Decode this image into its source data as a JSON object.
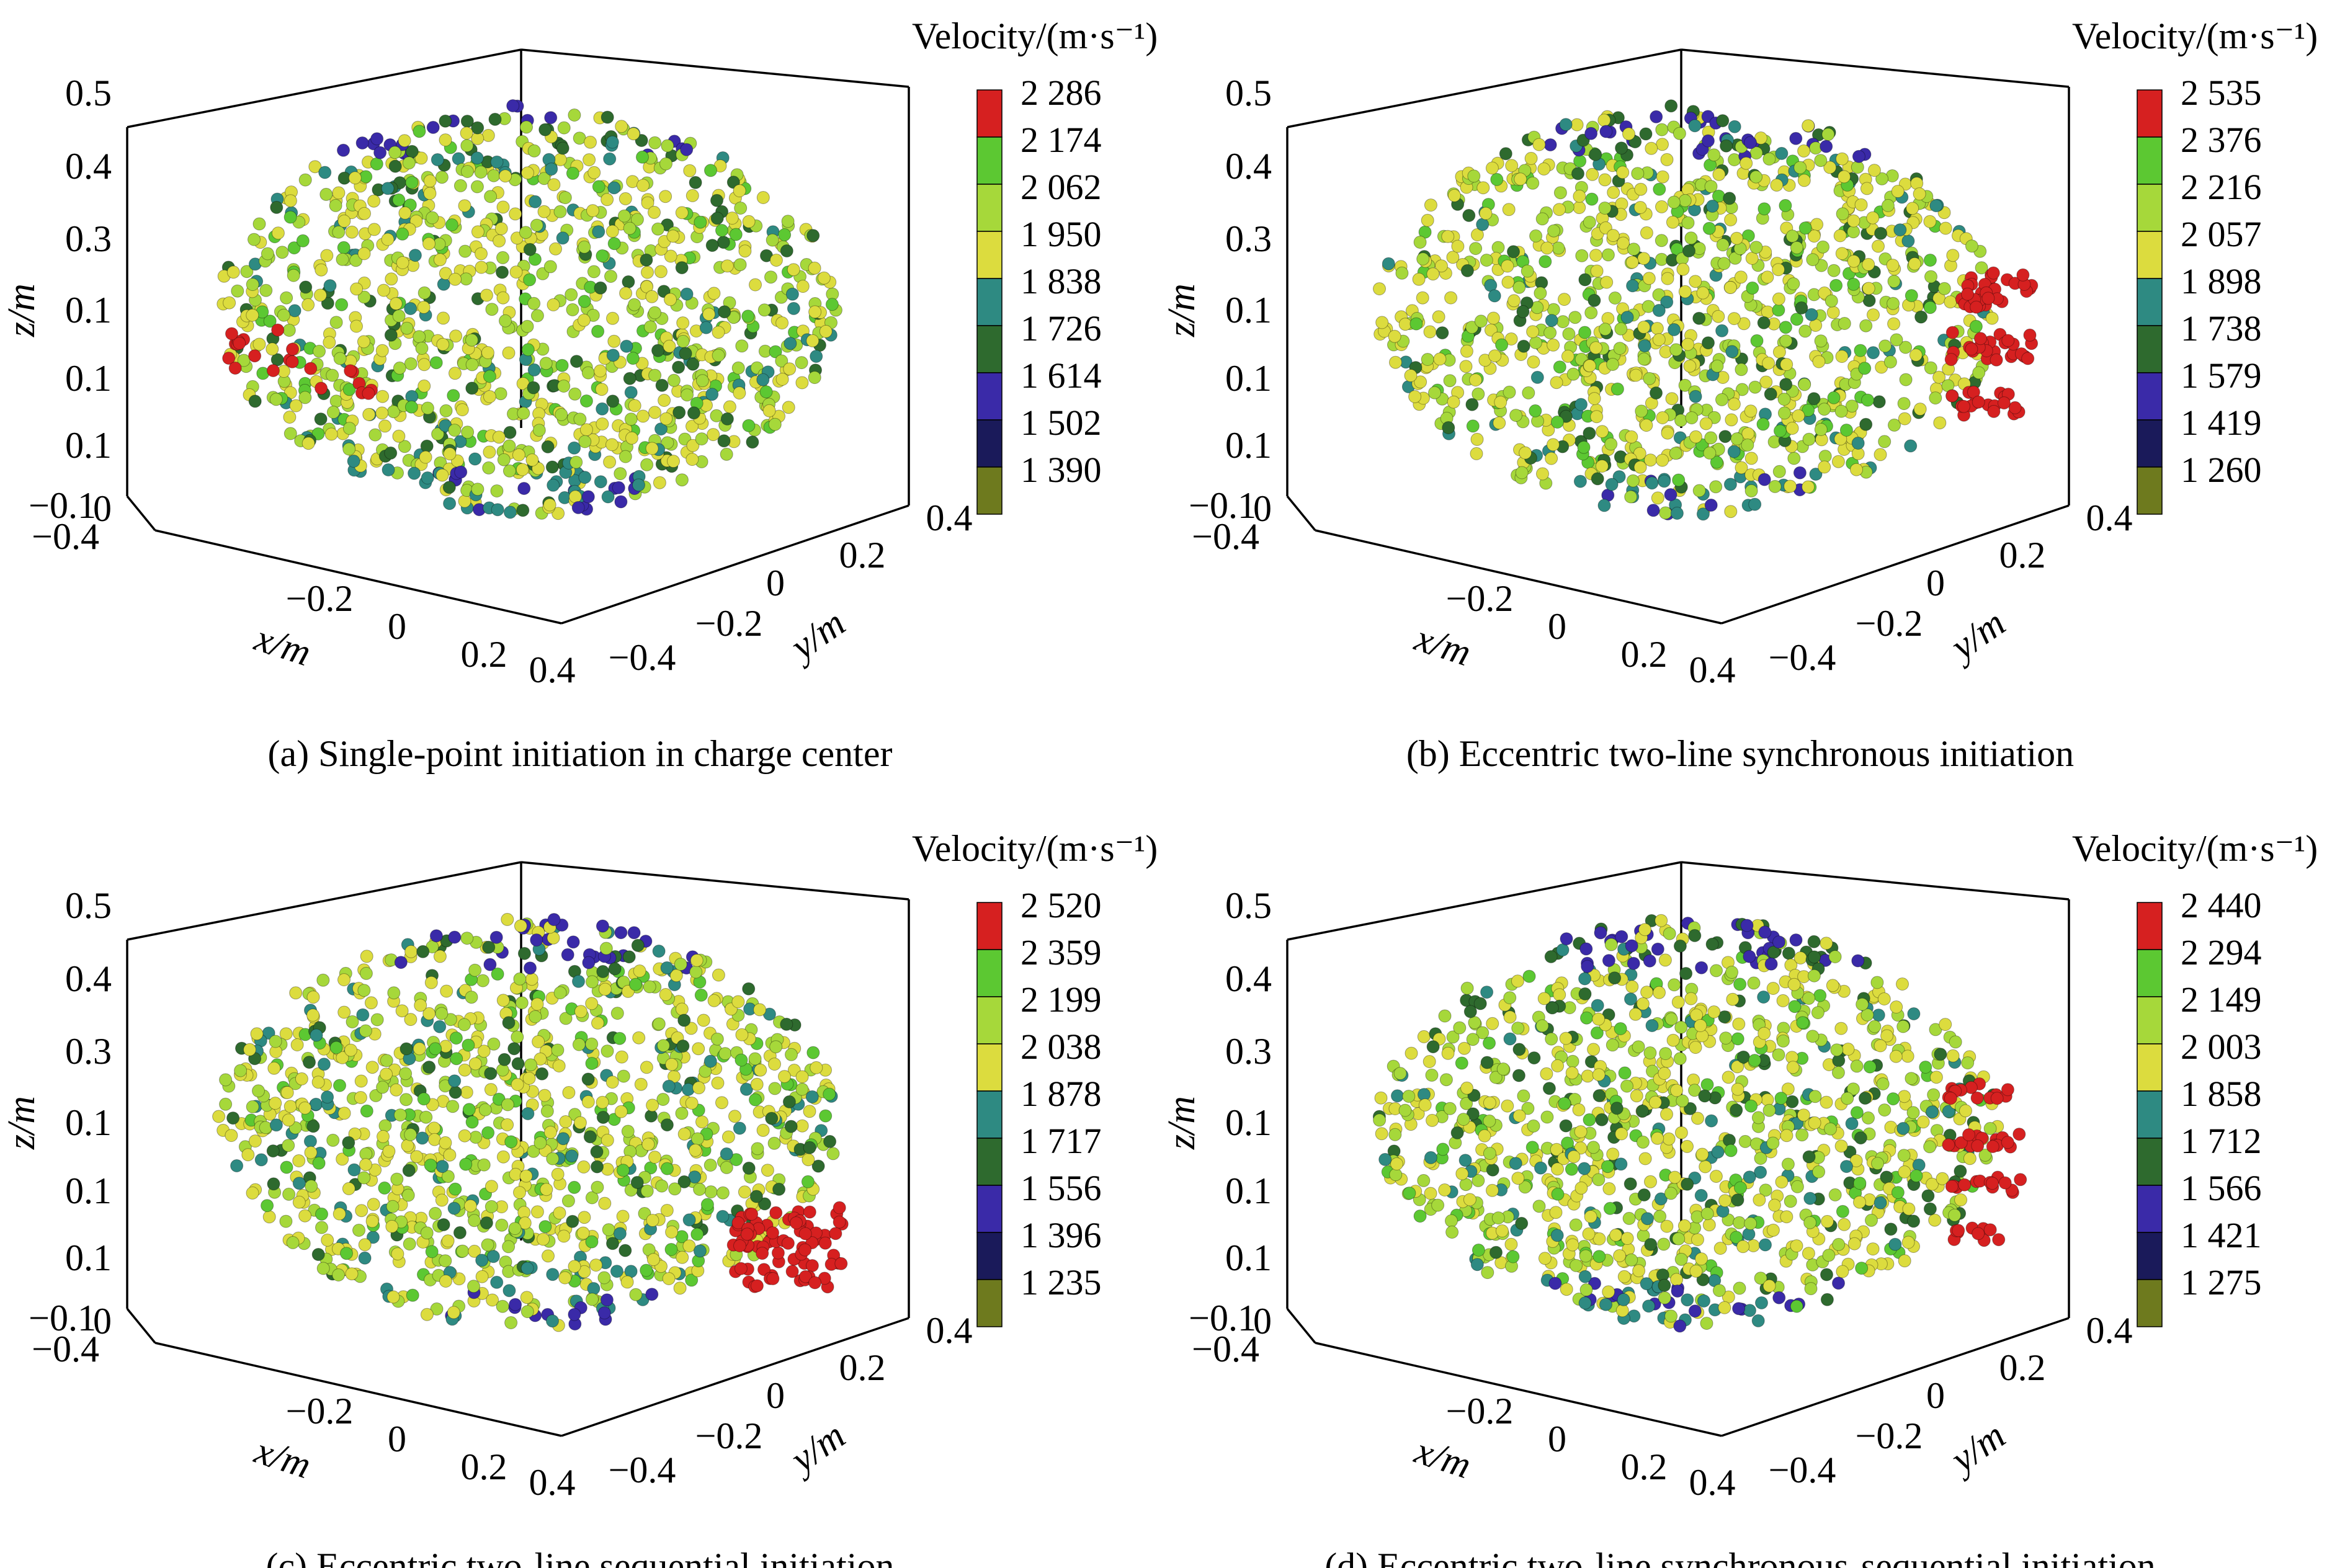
{
  "figure": {
    "panels": [
      {
        "id": "a",
        "caption": "(a) Single-point initiation in charge center",
        "colorbar": {
          "title": "Velocity/(m·s⁻¹)",
          "ticks": [
            "2 286",
            "2 174",
            "2 062",
            "1 950",
            "1 838",
            "1 726",
            "1 614",
            "1 502",
            "1 390"
          ]
        },
        "hotspot": "left"
      },
      {
        "id": "b",
        "caption": "(b) Eccentric two-line synchronous initiation",
        "colorbar": {
          "title": "Velocity/(m·s⁻¹)",
          "ticks": [
            "2 535",
            "2 376",
            "2 216",
            "2 057",
            "1 898",
            "1 738",
            "1 579",
            "1 419",
            "1 260"
          ]
        },
        "hotspot": "right-band"
      },
      {
        "id": "c",
        "caption": "(c) Eccentric two-line sequential initiation",
        "colorbar": {
          "title": "Velocity/(m·s⁻¹)",
          "ticks": [
            "2 520",
            "2 359",
            "2 199",
            "2 038",
            "1 878",
            "1 717",
            "1 556",
            "1 396",
            "1 235"
          ]
        },
        "hotspot": "right-low"
      },
      {
        "id": "d",
        "caption": "(d) Eccentric two-line synchronous-sequential initiation",
        "colorbar": {
          "title": "Velocity/(m·s⁻¹)",
          "ticks": [
            "2 440",
            "2 294",
            "2 149",
            "2 003",
            "1 858",
            "1 712",
            "1 566",
            "1 421",
            "1 275"
          ]
        },
        "hotspot": "right-stripes"
      }
    ],
    "axes": {
      "x": {
        "label": "x/m",
        "ticks": [
          "−0.4",
          "−0.2",
          "0",
          "0.2",
          "0.4"
        ]
      },
      "y": {
        "label": "y/m",
        "ticks": [
          "−0.4",
          "−0.2",
          "0",
          "0.2",
          "0.4"
        ]
      },
      "z": {
        "label": "z/m",
        "ticks": [
          "0.5",
          "0.4",
          "0.3",
          "0.1",
          "0.1",
          "0.1",
          "0",
          "−0.1"
        ]
      }
    },
    "colormap": [
      "#d62020",
      "#5cc832",
      "#a6d83a",
      "#dcdc3e",
      "#2e8a82",
      "#2e6a2e",
      "#3a2aa8",
      "#1a1a5a",
      "#6e7a1e"
    ]
  },
  "chart_data": [
    {
      "type": "scatter",
      "title": "(a) Single-point initiation in charge center",
      "xlabel": "x/m",
      "ylabel": "y/m",
      "zlabel": "z/m",
      "xlim": [
        -0.4,
        0.4
      ],
      "ylim": [
        -0.4,
        0.4
      ],
      "zlim": [
        -0.1,
        0.5
      ],
      "colorbar_label": "Velocity/(m·s⁻¹)",
      "color_range": [
        1390,
        2286
      ],
      "color_levels": [
        2286,
        2174,
        2062,
        1950,
        1838,
        1726,
        1614,
        1502,
        1390
      ],
      "grid": false
    },
    {
      "type": "scatter",
      "title": "(b) Eccentric two-line synchronous initiation",
      "xlabel": "x/m",
      "ylabel": "y/m",
      "zlabel": "z/m",
      "xlim": [
        -0.4,
        0.4
      ],
      "ylim": [
        -0.4,
        0.4
      ],
      "zlim": [
        -0.1,
        0.5
      ],
      "colorbar_label": "Velocity/(m·s⁻¹)",
      "color_range": [
        1260,
        2535
      ],
      "color_levels": [
        2535,
        2376,
        2216,
        2057,
        1898,
        1738,
        1579,
        1419,
        1260
      ],
      "grid": false
    },
    {
      "type": "scatter",
      "title": "(c) Eccentric two-line sequential initiation",
      "xlabel": "x/m",
      "ylabel": "y/m",
      "zlabel": "z/m",
      "xlim": [
        -0.4,
        0.4
      ],
      "ylim": [
        -0.4,
        0.4
      ],
      "zlim": [
        -0.1,
        0.5
      ],
      "colorbar_label": "Velocity/(m·s⁻¹)",
      "color_range": [
        1235,
        2520
      ],
      "color_levels": [
        2520,
        2359,
        2199,
        2038,
        1878,
        1717,
        1556,
        1396,
        1235
      ],
      "grid": false
    },
    {
      "type": "scatter",
      "title": "(d) Eccentric two-line synchronous-sequential initiation",
      "xlabel": "x/m",
      "ylabel": "y/m",
      "zlabel": "z/m",
      "xlim": [
        -0.4,
        0.4
      ],
      "ylim": [
        -0.4,
        0.4
      ],
      "zlim": [
        -0.1,
        0.5
      ],
      "colorbar_label": "Velocity/(m·s⁻¹)",
      "color_range": [
        1275,
        2440
      ],
      "color_levels": [
        2440,
        2294,
        2149,
        2003,
        1858,
        1712,
        1566,
        1421,
        1275
      ],
      "grid": false
    }
  ]
}
